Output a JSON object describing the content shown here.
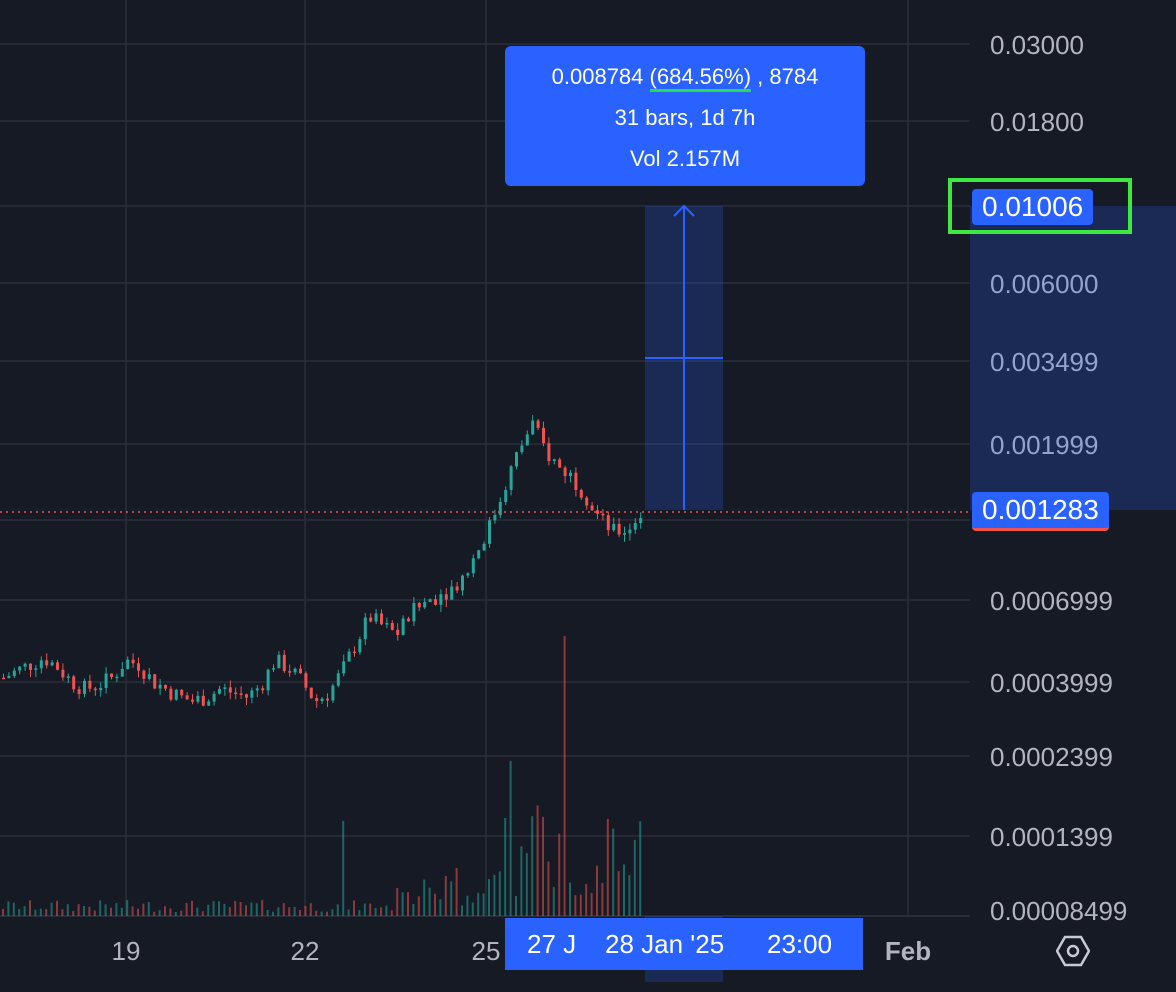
{
  "chart_data": {
    "type": "candlestick",
    "y_scale": "log",
    "y_ticks": [
      "0.03000",
      "0.01800",
      "0.006000",
      "0.003499",
      "0.001999",
      "0.0006999",
      "0.0003999",
      "0.0002399",
      "0.0001399",
      "0.00008499"
    ],
    "x_ticks": [
      "19",
      "22",
      "25",
      "Feb"
    ],
    "current_price": "0.001283",
    "target_price": "0.01006",
    "series": [
      {
        "name": "price",
        "values": [
          0.00041,
          0.00043,
          0.00045,
          0.00047,
          0.00044,
          0.0004,
          0.00038,
          0.00039,
          0.00041,
          0.00046,
          0.00045,
          0.0004,
          0.00038,
          0.00036,
          0.00035,
          0.00036,
          0.00038,
          0.00037,
          0.00036,
          0.00039,
          0.00046,
          0.00044,
          0.0004,
          0.00035,
          0.00037,
          0.00043,
          0.00052,
          0.00062,
          0.00058,
          0.00055,
          0.00063,
          0.00068,
          0.00072,
          0.00075,
          0.00082,
          0.00098,
          0.00118,
          0.00152,
          0.0019,
          0.0023,
          0.0019,
          0.0017,
          0.0016,
          0.0014,
          0.0012,
          0.0011,
          0.00112,
          0.00124
        ]
      }
    ]
  },
  "tooltip": {
    "price_change": "0.008784",
    "percent": "(684.56%)",
    "ticks": ", 8784",
    "bars": "31 bars, 1d 7h",
    "volume": "Vol 2.157M"
  },
  "price_tags": {
    "target": "0.01006",
    "current": "0.001283"
  },
  "time_axis_label": {
    "left": "27 J",
    "middle": "28 Jan '25",
    "right": "23:00"
  },
  "colors": {
    "background": "#161a25",
    "grid": "#2a2e39",
    "up": "#26a69a",
    "down": "#ef5350",
    "accent": "#2962ff",
    "highlight": "#3ee840"
  },
  "icons": {
    "settings": "gear-hexagon-icon"
  }
}
